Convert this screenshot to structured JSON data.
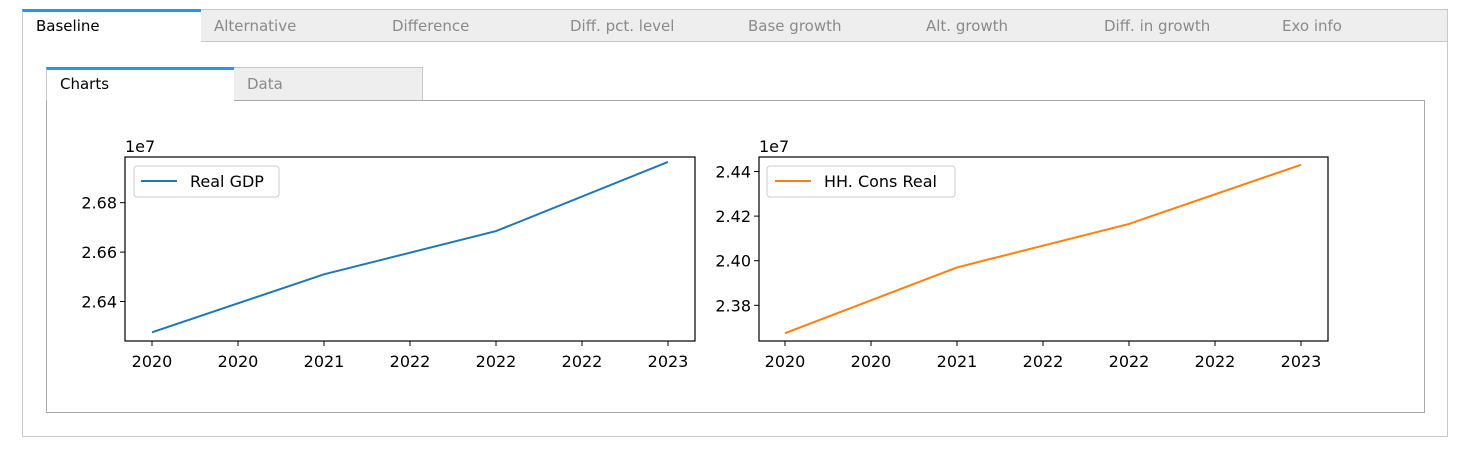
{
  "outer_tabs": [
    {
      "label": "Baseline",
      "active": true
    },
    {
      "label": "Alternative",
      "active": false
    },
    {
      "label": "Difference",
      "active": false
    },
    {
      "label": "Diff. pct. level",
      "active": false
    },
    {
      "label": "Base growth",
      "active": false
    },
    {
      "label": "Alt. growth",
      "active": false
    },
    {
      "label": "Diff. in growth",
      "active": false
    },
    {
      "label": "Exo info",
      "active": false
    }
  ],
  "inner_tabs": [
    {
      "label": "Charts",
      "active": true
    },
    {
      "label": "Data",
      "active": false
    }
  ],
  "chart_data": [
    {
      "type": "line",
      "x": [
        0,
        1,
        2,
        3
      ],
      "xtick_labels": [
        "2020",
        "2020",
        "2021",
        "2022",
        "2022",
        "2022",
        "2023"
      ],
      "series": [
        {
          "name": "Real GDP",
          "color": "#1f77b4",
          "values": [
            2.6275,
            2.651,
            2.6685,
            2.6965
          ]
        }
      ],
      "y_offset_label": "1e7",
      "yticks": [
        2.64,
        2.66,
        2.68
      ],
      "ytick_labels": [
        "2.64",
        "2.66",
        "2.68"
      ],
      "ylim": [
        2.624,
        2.6985
      ],
      "legend": "upper-left"
    },
    {
      "type": "line",
      "x": [
        0,
        1,
        2,
        3
      ],
      "xtick_labels": [
        "2020",
        "2020",
        "2021",
        "2022",
        "2022",
        "2022",
        "2023"
      ],
      "series": [
        {
          "name": "HH. Cons Real",
          "color": "#ff7f0e",
          "values": [
            2.3675,
            2.397,
            2.4165,
            2.443
          ]
        }
      ],
      "y_offset_label": "1e7",
      "yticks": [
        2.38,
        2.4,
        2.42,
        2.44
      ],
      "ytick_labels": [
        "2.38",
        "2.40",
        "2.42",
        "2.44"
      ],
      "ylim": [
        2.364,
        2.4465
      ],
      "legend": "upper-left"
    }
  ]
}
